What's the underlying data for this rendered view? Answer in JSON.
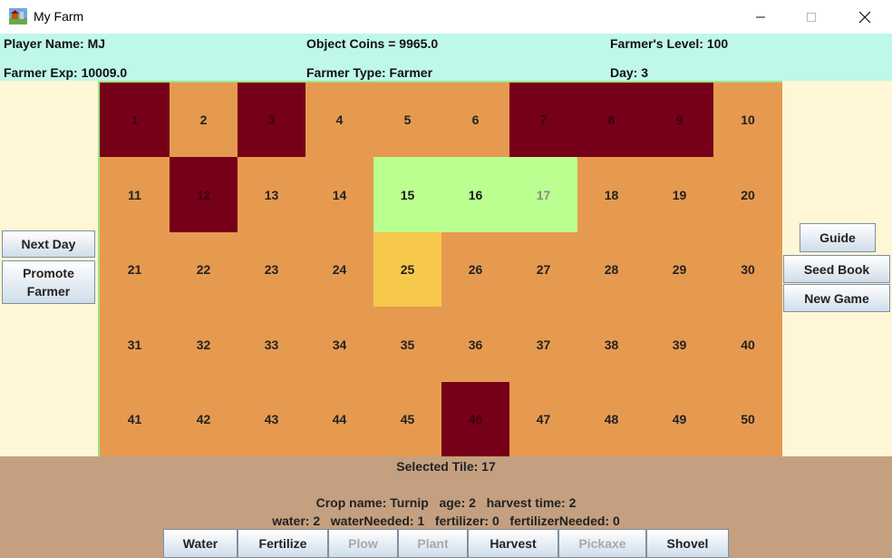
{
  "window": {
    "title": "My Farm",
    "icon": "farm-app-icon",
    "controls": {
      "minimize": "minimize-icon",
      "maximize": "maximize-icon",
      "close": "close-icon"
    }
  },
  "info": {
    "player_name": "Player Name: MJ",
    "object_coins": "Object Coins = 9965.0",
    "farmer_level": "Farmer's Level: 100",
    "farmer_exp": "Farmer Exp: 10009.0",
    "farmer_type": "Farmer Type: Farmer",
    "day": "Day: 3"
  },
  "left_buttons": {
    "next_day": "Next Day",
    "promote_1": "Promote",
    "promote_2": "Farmer"
  },
  "right_buttons": {
    "guide": "Guide",
    "seed_book": "Seed Book",
    "new_game": "New Game"
  },
  "tiles": [
    {
      "label": "1",
      "state": "rock"
    },
    {
      "label": "2",
      "state": "dirt"
    },
    {
      "label": "3",
      "state": "rock"
    },
    {
      "label": "4",
      "state": "dirt"
    },
    {
      "label": "5",
      "state": "dirt"
    },
    {
      "label": "6",
      "state": "dirt"
    },
    {
      "label": "7",
      "state": "rock"
    },
    {
      "label": "8",
      "state": "rock"
    },
    {
      "label": "9",
      "state": "rock"
    },
    {
      "label": "10",
      "state": "dirt"
    },
    {
      "label": "11",
      "state": "dirt"
    },
    {
      "label": "12",
      "state": "rock"
    },
    {
      "label": "13",
      "state": "dirt"
    },
    {
      "label": "14",
      "state": "dirt"
    },
    {
      "label": "15",
      "state": "crop"
    },
    {
      "label": "16",
      "state": "crop"
    },
    {
      "label": "17",
      "state": "crop-sel"
    },
    {
      "label": "18",
      "state": "dirt"
    },
    {
      "label": "19",
      "state": "dirt"
    },
    {
      "label": "20",
      "state": "dirt"
    },
    {
      "label": "21",
      "state": "dirt"
    },
    {
      "label": "22",
      "state": "dirt"
    },
    {
      "label": "23",
      "state": "dirt"
    },
    {
      "label": "24",
      "state": "dirt"
    },
    {
      "label": "25",
      "state": "ready"
    },
    {
      "label": "26",
      "state": "dirt"
    },
    {
      "label": "27",
      "state": "dirt"
    },
    {
      "label": "28",
      "state": "dirt"
    },
    {
      "label": "29",
      "state": "dirt"
    },
    {
      "label": "30",
      "state": "dirt"
    },
    {
      "label": "31",
      "state": "dirt"
    },
    {
      "label": "32",
      "state": "dirt"
    },
    {
      "label": "33",
      "state": "dirt"
    },
    {
      "label": "34",
      "state": "dirt"
    },
    {
      "label": "35",
      "state": "dirt"
    },
    {
      "label": "36",
      "state": "dirt"
    },
    {
      "label": "37",
      "state": "dirt"
    },
    {
      "label": "38",
      "state": "dirt"
    },
    {
      "label": "39",
      "state": "dirt"
    },
    {
      "label": "40",
      "state": "dirt"
    },
    {
      "label": "41",
      "state": "dirt"
    },
    {
      "label": "42",
      "state": "dirt"
    },
    {
      "label": "43",
      "state": "dirt"
    },
    {
      "label": "44",
      "state": "dirt"
    },
    {
      "label": "45",
      "state": "dirt"
    },
    {
      "label": "46",
      "state": "rock"
    },
    {
      "label": "47",
      "state": "dirt"
    },
    {
      "label": "48",
      "state": "dirt"
    },
    {
      "label": "49",
      "state": "dirt"
    },
    {
      "label": "50",
      "state": "dirt"
    }
  ],
  "status": {
    "selected_tile": "Selected Tile: 17",
    "crop_line": "Crop name: Turnip   age: 2   harvest time: 2",
    "water_line": "water: 2   waterNeeded: 1   fertilizer: 0   fertilizerNeeded: 0"
  },
  "tools": [
    {
      "label": "Water",
      "enabled": true,
      "name": "water-button"
    },
    {
      "label": "Fertilize",
      "enabled": true,
      "name": "fertilize-button"
    },
    {
      "label": "Plow",
      "enabled": false,
      "name": "plow-button"
    },
    {
      "label": "Plant",
      "enabled": false,
      "name": "plant-button"
    },
    {
      "label": "Harvest",
      "enabled": true,
      "name": "harvest-button"
    },
    {
      "label": "Pickaxe",
      "enabled": false,
      "name": "pickaxe-button"
    },
    {
      "label": "Shovel",
      "enabled": true,
      "name": "shovel-button"
    }
  ],
  "colors": {
    "info_bar": "#bff7e9",
    "side_panel": "#fff6d6",
    "dirt": "#e69a50",
    "rock": "#770019",
    "crop": "#baff90",
    "ready": "#f6c84c",
    "bottom_panel": "#c4a080",
    "farm_border": "#9ee38a"
  }
}
